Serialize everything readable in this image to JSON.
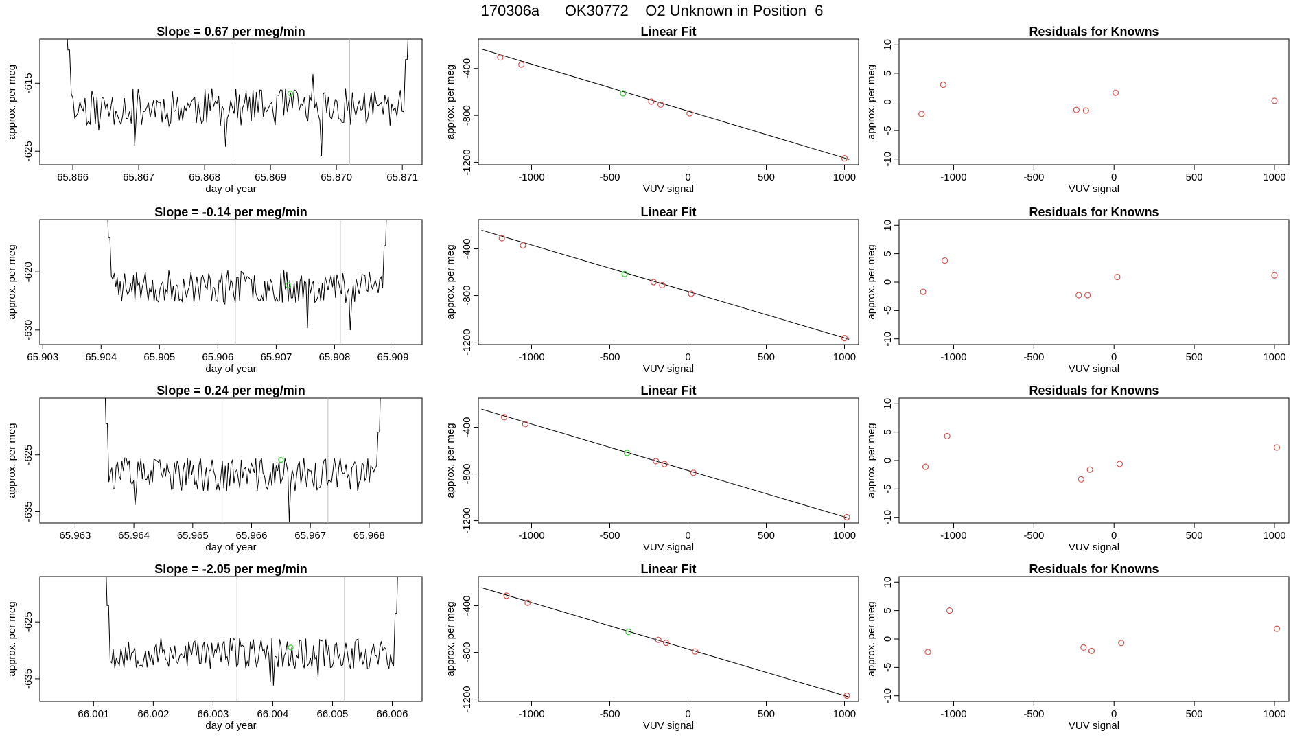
{
  "page": {
    "title": "170306a      OK30772    O2 Unknown in Position  6"
  },
  "colors": {
    "axis": "#000000",
    "trace": "#000000",
    "vline": "#bebebe",
    "known": "#d9534f",
    "unknown": "#33cc33"
  },
  "chart_data": [
    {
      "type": "line",
      "row": 1,
      "col": 1,
      "title": "Slope =  0.67  per meg/min",
      "xlabel": "day of year",
      "ylabel": "approx. per meg",
      "xlim": [
        65.8655,
        65.8713
      ],
      "ylim": [
        -627,
        -608.5
      ],
      "xticks": [
        65.866,
        65.867,
        65.868,
        65.869,
        65.87,
        65.871
      ],
      "xtick_labels": [
        "65.866",
        "65.867",
        "65.868",
        "65.869",
        "65.870",
        "65.871"
      ],
      "yticks": [
        -615,
        -625
      ],
      "ytick_labels": [
        "-615",
        "-625"
      ],
      "vlines": [
        65.8684,
        65.8702
      ],
      "trace": {
        "x_start": 65.8659,
        "x_end": 65.8711,
        "start_y": -605,
        "end_y": -605,
        "base": -618.5,
        "amp": 2.8,
        "n": 200,
        "seed": 11
      },
      "marker": {
        "x": 65.8693,
        "y": -616.5
      }
    },
    {
      "type": "scatter",
      "row": 1,
      "col": 2,
      "title": "Linear Fit",
      "xlabel": "VUV signal",
      "ylabel": "approx. per meg",
      "xlim": [
        -1340,
        1090
      ],
      "ylim": [
        -1220,
        -150
      ],
      "xticks": [
        -1000,
        -500,
        0,
        500,
        1000
      ],
      "xtick_labels": [
        "-1000",
        "-500",
        "0",
        "500",
        "1000"
      ],
      "yticks": [
        -400,
        -800,
        -1200
      ],
      "ytick_labels": [
        "-400",
        "-800",
        "-1200"
      ],
      "line": {
        "x0": -1320,
        "y0": -235,
        "x1": 1030,
        "y1": -1175
      },
      "knowns": [
        {
          "x": -1200,
          "y": -306
        },
        {
          "x": -1065,
          "y": -367
        },
        {
          "x": -235,
          "y": -682
        },
        {
          "x": -175,
          "y": -708
        },
        {
          "x": 10,
          "y": -782
        },
        {
          "x": 1000,
          "y": -1165
        }
      ],
      "unknown": {
        "x": -415,
        "y": -612
      }
    },
    {
      "type": "scatter",
      "row": 1,
      "col": 3,
      "title": "Residuals for Knowns",
      "xlabel": "VUV signal",
      "ylabel": "approx. per meg",
      "xlim": [
        -1340,
        1090
      ],
      "ylim": [
        -11,
        11
      ],
      "xticks": [
        -1000,
        -500,
        0,
        500,
        1000
      ],
      "xtick_labels": [
        "-1000",
        "-500",
        "0",
        "500",
        "1000"
      ],
      "yticks": [
        10,
        5,
        0,
        -5,
        -10
      ],
      "ytick_labels": [
        "10",
        "5",
        "0",
        "-5",
        "-10"
      ],
      "knowns": [
        {
          "x": -1200,
          "y": -2.1
        },
        {
          "x": -1065,
          "y": 3.0
        },
        {
          "x": -235,
          "y": -1.4
        },
        {
          "x": -175,
          "y": -1.5
        },
        {
          "x": 10,
          "y": 1.6
        },
        {
          "x": 1000,
          "y": 0.2
        }
      ]
    },
    {
      "type": "line",
      "row": 2,
      "col": 1,
      "title": "Slope =  -0.14  per meg/min",
      "xlabel": "day of year",
      "ylabel": "approx. per meg",
      "xlim": [
        65.90295,
        65.9095
      ],
      "ylim": [
        -632.5,
        -611
      ],
      "xticks": [
        65.903,
        65.904,
        65.905,
        65.906,
        65.907,
        65.908,
        65.909
      ],
      "xtick_labels": [
        "65.903",
        "65.904",
        "65.905",
        "65.906",
        "65.907",
        "65.908",
        "65.909"
      ],
      "yticks": [
        -620,
        -630
      ],
      "ytick_labels": [
        "-620",
        "-630"
      ],
      "vlines": [
        65.9063,
        65.9081
      ],
      "trace": {
        "x_start": 65.9041,
        "x_end": 65.9089,
        "start_y": -606,
        "end_y": -606,
        "base": -622.5,
        "amp": 2.8,
        "n": 190,
        "seed": 23
      },
      "marker": {
        "x": 65.9072,
        "y": -622.3
      }
    },
    {
      "type": "scatter",
      "row": 2,
      "col": 2,
      "title": "Linear Fit",
      "xlabel": "VUV signal",
      "ylabel": "approx. per meg",
      "xlim": [
        -1340,
        1090
      ],
      "ylim": [
        -1220,
        -150
      ],
      "xticks": [
        -1000,
        -500,
        0,
        500,
        1000
      ],
      "xtick_labels": [
        "-1000",
        "-500",
        "0",
        "500",
        "1000"
      ],
      "yticks": [
        -400,
        -800,
        -1200
      ],
      "ytick_labels": [
        "-400",
        "-800",
        "-1200"
      ],
      "line": {
        "x0": -1320,
        "y0": -240,
        "x1": 1030,
        "y1": -1175
      },
      "knowns": [
        {
          "x": -1190,
          "y": -309
        },
        {
          "x": -1055,
          "y": -371
        },
        {
          "x": -220,
          "y": -685
        },
        {
          "x": -165,
          "y": -711
        },
        {
          "x": 20,
          "y": -785
        },
        {
          "x": 1000,
          "y": -1165
        }
      ],
      "unknown": {
        "x": -405,
        "y": -616
      }
    },
    {
      "type": "scatter",
      "row": 2,
      "col": 3,
      "title": "Residuals for Knowns",
      "xlabel": "VUV signal",
      "ylabel": "approx. per meg",
      "xlim": [
        -1340,
        1090
      ],
      "ylim": [
        -11,
        11
      ],
      "xticks": [
        -1000,
        -500,
        0,
        500,
        1000
      ],
      "xtick_labels": [
        "-1000",
        "-500",
        "0",
        "500",
        "1000"
      ],
      "yticks": [
        10,
        5,
        0,
        -5,
        -10
      ],
      "ytick_labels": [
        "10",
        "5",
        "0",
        "-5",
        "-10"
      ],
      "knowns": [
        {
          "x": -1190,
          "y": -1.7
        },
        {
          "x": -1055,
          "y": 3.8
        },
        {
          "x": -220,
          "y": -2.3
        },
        {
          "x": -165,
          "y": -2.3
        },
        {
          "x": 20,
          "y": 0.9
        },
        {
          "x": 1000,
          "y": 1.2
        }
      ]
    },
    {
      "type": "line",
      "row": 3,
      "col": 1,
      "title": "Slope =  0.24  per meg/min",
      "xlabel": "day of year",
      "ylabel": "approx. per meg",
      "xlim": [
        65.9624,
        65.9689
      ],
      "ylim": [
        -637,
        -615
      ],
      "xticks": [
        65.963,
        65.964,
        65.965,
        65.966,
        65.967,
        65.968
      ],
      "xtick_labels": [
        "65.963",
        "65.964",
        "65.965",
        "65.966",
        "65.967",
        "65.968"
      ],
      "yticks": [
        -625,
        -635
      ],
      "ytick_labels": [
        "-625",
        "-635"
      ],
      "vlines": [
        65.9655,
        65.9673
      ],
      "trace": {
        "x_start": 65.9635,
        "x_end": 65.9682,
        "start_y": -610,
        "end_y": -610,
        "base": -628.5,
        "amp": 3.0,
        "n": 190,
        "seed": 37
      },
      "marker": {
        "x": 65.9665,
        "y": -625.9
      }
    },
    {
      "type": "scatter",
      "row": 3,
      "col": 2,
      "title": "Linear Fit",
      "xlabel": "VUV signal",
      "ylabel": "approx. per meg",
      "xlim": [
        -1340,
        1090
      ],
      "ylim": [
        -1220,
        -150
      ],
      "xticks": [
        -1000,
        -500,
        0,
        500,
        1000
      ],
      "xtick_labels": [
        "-1000",
        "-500",
        "0",
        "500",
        "1000"
      ],
      "yticks": [
        -400,
        -800,
        -1200
      ],
      "ytick_labels": [
        "-400",
        "-800",
        "-1200"
      ],
      "line": {
        "x0": -1320,
        "y0": -245,
        "x1": 1030,
        "y1": -1180
      },
      "knowns": [
        {
          "x": -1175,
          "y": -313
        },
        {
          "x": -1040,
          "y": -373
        },
        {
          "x": -205,
          "y": -690
        },
        {
          "x": -150,
          "y": -716
        },
        {
          "x": 35,
          "y": -790
        },
        {
          "x": 1015,
          "y": -1170
        }
      ],
      "unknown": {
        "x": -390,
        "y": -620
      }
    },
    {
      "type": "scatter",
      "row": 3,
      "col": 3,
      "title": "Residuals for Knowns",
      "xlabel": "VUV signal",
      "ylabel": "approx. per meg",
      "xlim": [
        -1340,
        1090
      ],
      "ylim": [
        -11,
        11
      ],
      "xticks": [
        -1000,
        -500,
        0,
        500,
        1000
      ],
      "xtick_labels": [
        "-1000",
        "-500",
        "0",
        "500",
        "1000"
      ],
      "yticks": [
        10,
        5,
        0,
        -5,
        -10
      ],
      "ytick_labels": [
        "10",
        "5",
        "0",
        "-5",
        "-10"
      ],
      "knowns": [
        {
          "x": -1175,
          "y": -1.1
        },
        {
          "x": -1040,
          "y": 4.3
        },
        {
          "x": -205,
          "y": -3.3
        },
        {
          "x": -150,
          "y": -1.6
        },
        {
          "x": 35,
          "y": -0.6
        },
        {
          "x": 1015,
          "y": 2.3
        }
      ]
    },
    {
      "type": "line",
      "row": 4,
      "col": 1,
      "title": "Slope =  -2.05  per meg/min",
      "xlabel": "day of year",
      "ylabel": "approx. per meg",
      "xlim": [
        66.0001,
        66.0065
      ],
      "ylim": [
        -639,
        -617
      ],
      "xticks": [
        66.001,
        66.002,
        66.003,
        66.004,
        66.005,
        66.006
      ],
      "xtick_labels": [
        "66.001",
        "66.002",
        "66.003",
        "66.004",
        "66.005",
        "66.006"
      ],
      "yticks": [
        -625,
        -635
      ],
      "ytick_labels": [
        "-625",
        "-635"
      ],
      "vlines": [
        66.0034,
        66.0052
      ],
      "trace": {
        "x_start": 66.0012,
        "x_end": 66.0061,
        "start_y": -612,
        "end_y": -612,
        "base": -630.5,
        "amp": 2.8,
        "n": 190,
        "seed": 53
      },
      "marker": {
        "x": 66.0043,
        "y": -629.5
      }
    },
    {
      "type": "scatter",
      "row": 4,
      "col": 2,
      "title": "Linear Fit",
      "xlabel": "VUV signal",
      "ylabel": "approx. per meg",
      "xlim": [
        -1340,
        1090
      ],
      "ylim": [
        -1220,
        -150
      ],
      "xticks": [
        -1000,
        -500,
        0,
        500,
        1000
      ],
      "xtick_labels": [
        "-1000",
        "-500",
        "0",
        "500",
        "1000"
      ],
      "yticks": [
        -400,
        -800,
        -1200
      ],
      "ytick_labels": [
        "-400",
        "-800",
        "-1200"
      ],
      "line": {
        "x0": -1320,
        "y0": -245,
        "x1": 1030,
        "y1": -1182
      },
      "knowns": [
        {
          "x": -1160,
          "y": -314
        },
        {
          "x": -1025,
          "y": -375
        },
        {
          "x": -190,
          "y": -692
        },
        {
          "x": -140,
          "y": -718
        },
        {
          "x": 45,
          "y": -792
        },
        {
          "x": 1015,
          "y": -1170
        }
      ],
      "unknown": {
        "x": -380,
        "y": -623
      }
    },
    {
      "type": "scatter",
      "row": 4,
      "col": 3,
      "title": "Residuals for Knowns",
      "xlabel": "VUV signal",
      "ylabel": "approx. per meg",
      "xlim": [
        -1340,
        1090
      ],
      "ylim": [
        -11,
        11
      ],
      "xticks": [
        -1000,
        -500,
        0,
        500,
        1000
      ],
      "xtick_labels": [
        "-1000",
        "-500",
        "0",
        "500",
        "1000"
      ],
      "yticks": [
        10,
        5,
        0,
        -5,
        -10
      ],
      "ytick_labels": [
        "10",
        "5",
        "0",
        "-5",
        "-10"
      ],
      "knowns": [
        {
          "x": -1160,
          "y": -2.3
        },
        {
          "x": -1025,
          "y": 5.0
        },
        {
          "x": -190,
          "y": -1.5
        },
        {
          "x": -140,
          "y": -2.1
        },
        {
          "x": 45,
          "y": -0.7
        },
        {
          "x": 1015,
          "y": 1.8
        }
      ]
    }
  ]
}
